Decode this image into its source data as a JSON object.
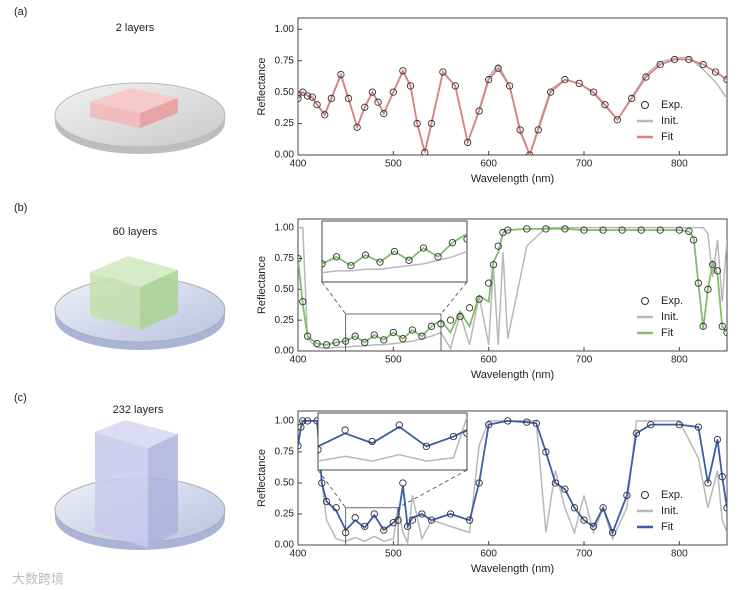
{
  "watermark": "大数跨境",
  "chart_data": [
    {
      "type": "line",
      "panel": "(a)",
      "title": "2 layers",
      "x_label": "Wavelength (nm)",
      "y_label": "Reflectance",
      "xlim": [
        400,
        850
      ],
      "xticks": [
        400,
        500,
        600,
        700,
        800
      ],
      "ylim": [
        0,
        1.09
      ],
      "yticks": [
        {
          "value": 0,
          "label": "0.00"
        },
        {
          "value": 0.25,
          "label": "0.25"
        },
        {
          "value": 0.5,
          "label": "0.50"
        },
        {
          "value": 0.75,
          "label": "0.75"
        },
        {
          "value": 1,
          "label": "1.00"
        }
      ],
      "legend": "lower right",
      "x": [
        400,
        405,
        410,
        415,
        420,
        428,
        435,
        445,
        453,
        462,
        470,
        478,
        484,
        490,
        500,
        510,
        518,
        525,
        533,
        540,
        552,
        565,
        578,
        590,
        600,
        610,
        622,
        633,
        643,
        652,
        665,
        680,
        695,
        710,
        722,
        735,
        750,
        765,
        780,
        795,
        810,
        825,
        838,
        850
      ],
      "series": [
        {
          "name": "Exp.",
          "color": "#333333",
          "mode": "markers",
          "values": [
            0.45,
            0.5,
            0.47,
            0.46,
            0.4,
            0.32,
            0.45,
            0.64,
            0.45,
            0.22,
            0.38,
            0.5,
            0.42,
            0.33,
            0.5,
            0.67,
            0.55,
            0.25,
            0.02,
            0.25,
            0.66,
            0.55,
            0.1,
            0.35,
            0.6,
            0.69,
            0.55,
            0.2,
            0.0,
            0.2,
            0.5,
            0.6,
            0.57,
            0.5,
            0.4,
            0.28,
            0.45,
            0.62,
            0.72,
            0.76,
            0.76,
            0.72,
            0.66,
            0.6
          ]
        },
        {
          "name": "Init.",
          "color": "#b8b8b8",
          "mode": "line",
          "values": [
            0.44,
            0.5,
            0.47,
            0.45,
            0.4,
            0.33,
            0.46,
            0.63,
            0.44,
            0.23,
            0.38,
            0.5,
            0.42,
            0.33,
            0.5,
            0.66,
            0.55,
            0.25,
            0.03,
            0.26,
            0.66,
            0.55,
            0.1,
            0.36,
            0.62,
            0.72,
            0.55,
            0.18,
            0.0,
            0.22,
            0.52,
            0.6,
            0.57,
            0.49,
            0.39,
            0.28,
            0.46,
            0.64,
            0.74,
            0.77,
            0.78,
            0.68,
            0.58,
            0.45
          ]
        },
        {
          "name": "Fit",
          "color": "#d98080",
          "mode": "line",
          "values": [
            0.45,
            0.5,
            0.47,
            0.46,
            0.4,
            0.32,
            0.45,
            0.64,
            0.45,
            0.22,
            0.38,
            0.5,
            0.42,
            0.33,
            0.5,
            0.67,
            0.55,
            0.25,
            0.02,
            0.25,
            0.66,
            0.55,
            0.1,
            0.35,
            0.6,
            0.69,
            0.55,
            0.2,
            0.0,
            0.2,
            0.5,
            0.6,
            0.57,
            0.5,
            0.4,
            0.28,
            0.45,
            0.62,
            0.72,
            0.76,
            0.76,
            0.72,
            0.66,
            0.6
          ]
        }
      ]
    },
    {
      "type": "line",
      "panel": "(b)",
      "title": "60 layers",
      "x_label": "Wavelength (nm)",
      "y_label": "Reflectance",
      "xlim": [
        400,
        850
      ],
      "xticks": [
        400,
        500,
        600,
        700,
        800
      ],
      "ylim": [
        0,
        1.07
      ],
      "yticks": [
        {
          "value": 0,
          "label": "0.00"
        },
        {
          "value": 0.25,
          "label": "0.25"
        },
        {
          "value": 0.5,
          "label": "0.50"
        },
        {
          "value": 0.75,
          "label": "0.75"
        },
        {
          "value": 1,
          "label": "1.00"
        }
      ],
      "legend": "lower right",
      "inset": {
        "xlim": [
          450,
          550
        ],
        "ylim": [
          0,
          0.3
        ]
      },
      "x": [
        400,
        405,
        410,
        420,
        430,
        440,
        450,
        460,
        470,
        480,
        490,
        500,
        510,
        520,
        530,
        540,
        550,
        560,
        570,
        580,
        590,
        600,
        605,
        610,
        615,
        620,
        640,
        660,
        680,
        700,
        720,
        740,
        760,
        780,
        800,
        810,
        815,
        820,
        825,
        830,
        835,
        840,
        845,
        850
      ],
      "series": [
        {
          "name": "Exp.",
          "color": "#333333",
          "mode": "markers",
          "values": [
            0.75,
            0.4,
            0.12,
            0.06,
            0.05,
            0.07,
            0.08,
            0.12,
            0.07,
            0.13,
            0.09,
            0.15,
            0.1,
            0.17,
            0.12,
            0.2,
            0.22,
            0.25,
            0.28,
            0.35,
            0.42,
            0.55,
            0.7,
            0.85,
            0.96,
            0.98,
            0.99,
            0.99,
            0.99,
            0.98,
            0.98,
            0.98,
            0.98,
            0.98,
            0.98,
            0.97,
            0.9,
            0.55,
            0.2,
            0.5,
            0.7,
            0.65,
            0.2,
            0.15
          ]
        },
        {
          "name": "Init.",
          "color": "#b8b8b8",
          "mode": "line",
          "values": [
            1.0,
            1.0,
            0.1,
            0.03,
            0.02,
            0.03,
            0.03,
            0.04,
            0.04,
            0.05,
            0.05,
            0.06,
            0.07,
            0.08,
            0.1,
            0.12,
            0.15,
            0.02,
            0.3,
            0.05,
            0.45,
            0.05,
            0.7,
            0.05,
            0.8,
            0.1,
            0.85,
            1.0,
            1.0,
            1.0,
            1.0,
            1.0,
            1.0,
            1.0,
            1.0,
            1.0,
            1.0,
            1.0,
            1.0,
            0.95,
            0.6,
            0.9,
            0.4,
            0.9
          ]
        },
        {
          "name": "Fit",
          "color": "#7fbf6a",
          "mode": "line",
          "values": [
            0.75,
            0.38,
            0.12,
            0.06,
            0.05,
            0.07,
            0.08,
            0.12,
            0.07,
            0.13,
            0.09,
            0.15,
            0.1,
            0.17,
            0.12,
            0.2,
            0.25,
            0.15,
            0.32,
            0.2,
            0.45,
            0.4,
            0.72,
            0.8,
            0.96,
            0.98,
            0.99,
            0.99,
            0.99,
            0.98,
            0.98,
            0.98,
            0.98,
            0.98,
            0.98,
            0.97,
            0.92,
            0.55,
            0.18,
            0.5,
            0.72,
            0.62,
            0.2,
            0.15
          ]
        }
      ]
    },
    {
      "type": "line",
      "panel": "(c)",
      "title": "232 layers",
      "x_label": "Wavelength (nm)",
      "y_label": "Reflectance",
      "xlim": [
        400,
        850
      ],
      "xticks": [
        400,
        500,
        600,
        700,
        800
      ],
      "ylim": [
        0,
        1.08
      ],
      "yticks": [
        {
          "value": 0,
          "label": "0.00"
        },
        {
          "value": 0.25,
          "label": "0.25"
        },
        {
          "value": 0.5,
          "label": "0.50"
        },
        {
          "value": 0.75,
          "label": "0.75"
        },
        {
          "value": 1,
          "label": "1.00"
        }
      ],
      "legend": "lower right",
      "inset": {
        "xlim": [
          450,
          505
        ],
        "ylim": [
          0,
          0.3
        ]
      },
      "x": [
        400,
        403,
        405,
        410,
        420,
        425,
        430,
        440,
        450,
        460,
        470,
        480,
        490,
        500,
        505,
        510,
        515,
        520,
        530,
        540,
        560,
        580,
        590,
        600,
        620,
        640,
        650,
        660,
        670,
        680,
        690,
        700,
        710,
        720,
        730,
        745,
        755,
        770,
        800,
        820,
        830,
        840,
        845,
        850
      ],
      "series": [
        {
          "name": "Exp.",
          "color": "#333333",
          "mode": "markers",
          "values": [
            0.8,
            0.95,
            1.0,
            1.0,
            1.0,
            0.5,
            0.35,
            0.3,
            0.1,
            0.22,
            0.15,
            0.25,
            0.12,
            0.18,
            0.2,
            0.5,
            0.15,
            0.2,
            0.25,
            0.2,
            0.25,
            0.2,
            0.5,
            0.97,
            1.0,
            0.99,
            0.98,
            0.75,
            0.5,
            0.45,
            0.3,
            0.2,
            0.15,
            0.3,
            0.1,
            0.4,
            0.9,
            0.97,
            0.97,
            0.95,
            0.5,
            0.85,
            0.55,
            0.3
          ]
        },
        {
          "name": "Init.",
          "color": "#b8b8b8",
          "mode": "line",
          "values": [
            1.0,
            1.0,
            1.0,
            1.0,
            1.0,
            0.5,
            0.2,
            0.05,
            0.03,
            0.06,
            0.03,
            0.07,
            0.03,
            0.05,
            0.3,
            0.1,
            0.02,
            0.4,
            0.05,
            0.2,
            0.15,
            0.1,
            0.8,
            1.0,
            1.0,
            1.0,
            1.0,
            0.1,
            0.6,
            0.3,
            0.1,
            0.4,
            0.1,
            0.3,
            0.05,
            0.3,
            1.0,
            1.0,
            1.0,
            0.7,
            0.3,
            0.6,
            0.2,
            0.1
          ]
        },
        {
          "name": "Fit",
          "color": "#3a5ea8",
          "mode": "line",
          "values": [
            0.8,
            0.95,
            1.0,
            1.0,
            1.0,
            0.5,
            0.35,
            0.28,
            0.12,
            0.2,
            0.14,
            0.24,
            0.12,
            0.18,
            0.22,
            0.48,
            0.15,
            0.22,
            0.25,
            0.2,
            0.25,
            0.2,
            0.5,
            0.97,
            1.0,
            0.99,
            0.98,
            0.75,
            0.5,
            0.45,
            0.3,
            0.2,
            0.15,
            0.3,
            0.1,
            0.4,
            0.9,
            0.97,
            0.97,
            0.95,
            0.5,
            0.85,
            0.55,
            0.3
          ]
        }
      ]
    }
  ]
}
